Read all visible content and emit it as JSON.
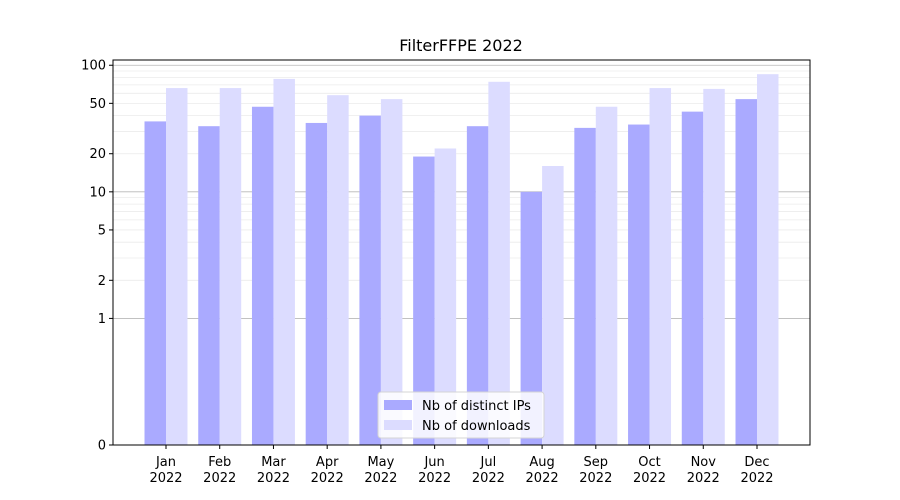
{
  "chart_data": {
    "type": "bar",
    "title": "FilterFFPE 2022",
    "xlabel": "",
    "ylabel": "",
    "categories": [
      {
        "month": "Jan",
        "year": "2022"
      },
      {
        "month": "Feb",
        "year": "2022"
      },
      {
        "month": "Mar",
        "year": "2022"
      },
      {
        "month": "Apr",
        "year": "2022"
      },
      {
        "month": "May",
        "year": "2022"
      },
      {
        "month": "Jun",
        "year": "2022"
      },
      {
        "month": "Jul",
        "year": "2022"
      },
      {
        "month": "Aug",
        "year": "2022"
      },
      {
        "month": "Sep",
        "year": "2022"
      },
      {
        "month": "Oct",
        "year": "2022"
      },
      {
        "month": "Nov",
        "year": "2022"
      },
      {
        "month": "Dec",
        "year": "2022"
      }
    ],
    "series": [
      {
        "name": "Nb of distinct IPs",
        "color": "#aaaaff",
        "values": [
          36,
          33,
          47,
          35,
          40,
          19,
          33,
          10,
          32,
          34,
          43,
          54
        ]
      },
      {
        "name": "Nb of downloads",
        "color": "#dcdcff",
        "values": [
          66,
          66,
          78,
          58,
          54,
          22,
          74,
          16,
          47,
          66,
          65,
          85
        ]
      }
    ],
    "y_scale": "symlog",
    "ylim": [
      0,
      110
    ],
    "yticks": [
      {
        "value": 0,
        "label": "0"
      },
      {
        "value": 1,
        "label": "1"
      },
      {
        "value": 2,
        "label": "2"
      },
      {
        "value": 5,
        "label": "5"
      },
      {
        "value": 10,
        "label": "10"
      },
      {
        "value": 20,
        "label": "20"
      },
      {
        "value": 50,
        "label": "50"
      },
      {
        "value": 100,
        "label": "100"
      }
    ],
    "major_gridlines": [
      1,
      10,
      100
    ],
    "minor_gridlines": [
      2,
      3,
      4,
      5,
      6,
      7,
      8,
      9,
      20,
      30,
      40,
      50,
      60,
      70,
      80,
      90
    ],
    "grid": true,
    "legend_position": "bottom-center"
  }
}
